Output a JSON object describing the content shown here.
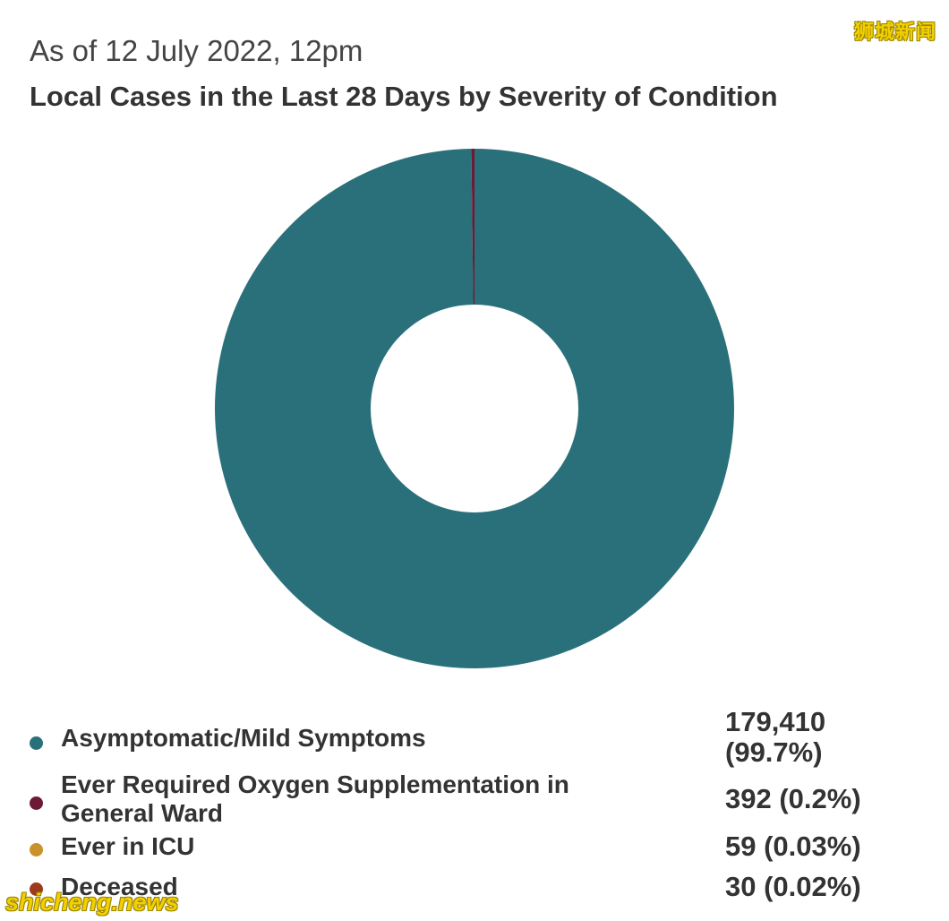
{
  "watermark": {
    "top": "狮城新闻",
    "bottom": "shicheng.news"
  },
  "header": {
    "subtitle": "As of 12 July 2022, 12pm",
    "title": "Local Cases in the Last 28 Days by Severity of Condition"
  },
  "chart_data": {
    "type": "pie",
    "variant": "donut",
    "title": "Local Cases in the Last 28 Days by Severity of Condition",
    "subtitle": "As of 12 July 2022, 12pm",
    "categories": [
      "Asymptomatic/Mild Symptoms",
      "Ever Required Oxygen Supplementation in General Ward",
      "Ever in ICU",
      "Deceased"
    ],
    "values": [
      179410,
      392,
      59,
      30
    ],
    "percent_labels": [
      "99.7%",
      "0.2%",
      "0.03%",
      "0.02%"
    ],
    "value_labels": [
      "179,410\n(99.7%)",
      "392 (0.2%)",
      "59 (0.03%)",
      "30 (0.02%)"
    ],
    "colors": [
      "#2a707a",
      "#6d1a36",
      "#c9922a",
      "#9c3a1e"
    ],
    "legend_position": "bottom"
  }
}
